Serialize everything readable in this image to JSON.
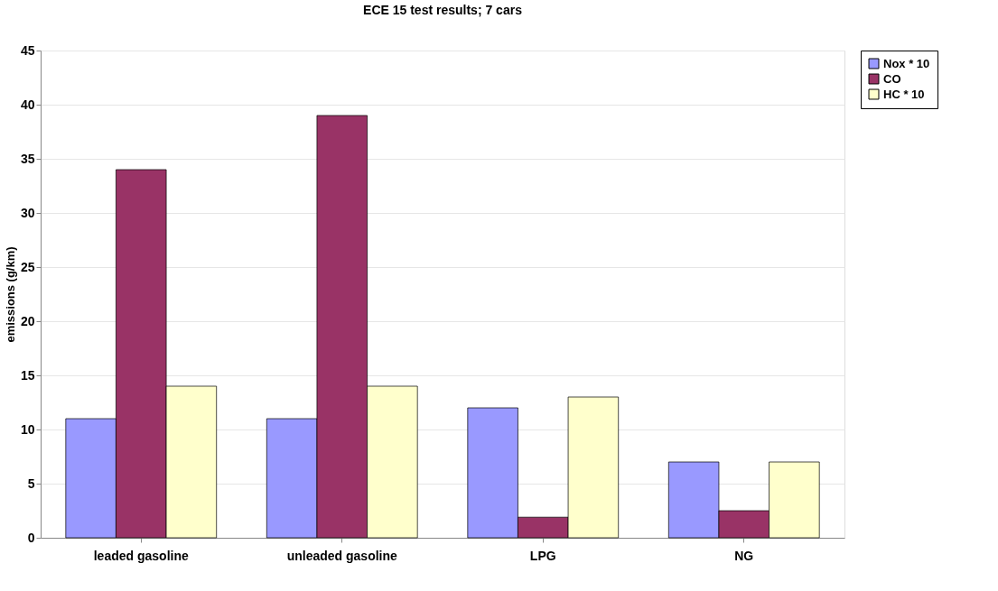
{
  "chart_data": {
    "type": "bar",
    "title": "ECE 15 test results; 7 cars",
    "ylabel": "emissions (g/km)",
    "categories": [
      "leaded gasoline",
      "unleaded gasoline",
      "LPG",
      "NG"
    ],
    "series": [
      {
        "name": "Nox * 10",
        "color": "#9999ff",
        "values": [
          11,
          11,
          12,
          7
        ]
      },
      {
        "name": "CO",
        "color": "#993366",
        "values": [
          34,
          39,
          1.9,
          2.5
        ]
      },
      {
        "name": "HC * 10",
        "color": "#ffffcc",
        "values": [
          14,
          14,
          13,
          7
        ]
      }
    ],
    "ylim": [
      0,
      45
    ],
    "yticks": [
      0,
      5,
      10,
      15,
      20,
      25,
      30,
      35,
      40,
      45
    ],
    "grid": "y",
    "legend": "right"
  }
}
